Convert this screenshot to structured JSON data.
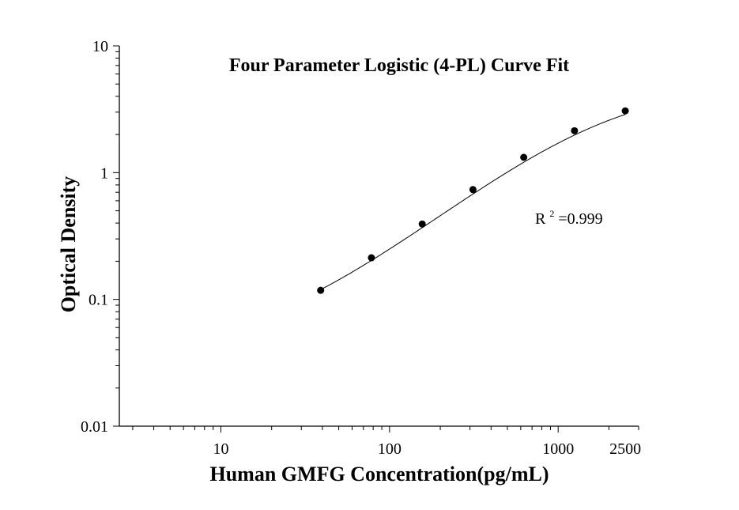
{
  "chart_data": {
    "type": "scatter",
    "title": "Four Parameter Logistic (4-PL) Curve Fit",
    "xlabel": "Human GMFG Concentration(pg/mL)",
    "ylabel": "Optical Density",
    "x_scale": "log",
    "y_scale": "log",
    "xlim": [
      2.5,
      3000
    ],
    "ylim": [
      0.01,
      10
    ],
    "x_ticks": [
      {
        "value": 10,
        "label": "10"
      },
      {
        "value": 100,
        "label": "100"
      },
      {
        "value": 1000,
        "label": "1000"
      },
      {
        "value": 2500,
        "label": "2500"
      }
    ],
    "y_ticks": [
      {
        "value": 0.01,
        "label": "0.01"
      },
      {
        "value": 0.1,
        "label": "0.1"
      },
      {
        "value": 1,
        "label": "1"
      },
      {
        "value": 10,
        "label": "10"
      }
    ],
    "series": [
      {
        "points": [
          {
            "x": 39.06,
            "y": 0.118
          },
          {
            "x": 78.13,
            "y": 0.213
          },
          {
            "x": 156.25,
            "y": 0.393
          },
          {
            "x": 312.5,
            "y": 0.735
          },
          {
            "x": 625,
            "y": 1.32
          },
          {
            "x": 1250,
            "y": 2.14
          },
          {
            "x": 2500,
            "y": 3.07
          }
        ],
        "marker": "filled-circle",
        "color": "#000000"
      }
    ],
    "fit": {
      "model": "4-PL",
      "a": 0.04,
      "b": 1.06,
      "c": 1900,
      "d": 5.0,
      "x_range": [
        39.06,
        2500
      ]
    },
    "annotation": {
      "r_base": "R",
      "r_sup": "2",
      "r_value": "=0.999"
    },
    "grid": false,
    "legend": "none"
  }
}
